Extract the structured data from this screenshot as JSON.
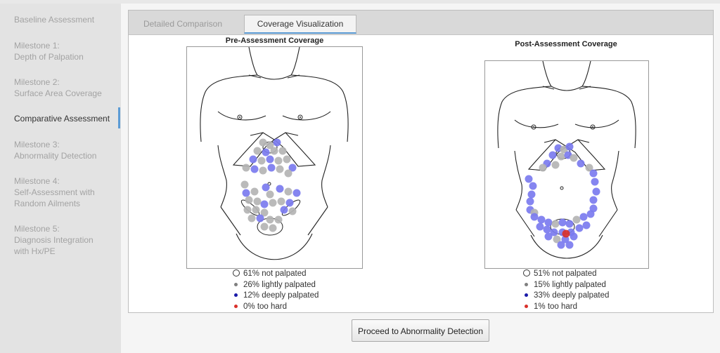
{
  "sidebar": {
    "items": [
      {
        "lines": [
          "Baseline Assessment"
        ],
        "active": false
      },
      {
        "lines": [
          "Milestone 1:",
          "Depth of Palpation"
        ],
        "active": false
      },
      {
        "lines": [
          "Milestone 2:",
          "Surface Area Coverage"
        ],
        "active": false
      },
      {
        "lines": [
          "Comparative Assessment"
        ],
        "active": true
      },
      {
        "lines": [
          "Milestone 3:",
          "Abnormality Detection"
        ],
        "active": false
      },
      {
        "lines": [
          "Milestone 4:",
          "Self-Assessment with",
          "Random Ailments"
        ],
        "active": false
      },
      {
        "lines": [
          "Milestone 5:",
          "Diagnosis Integration",
          "with Hx/PE"
        ],
        "active": false
      }
    ]
  },
  "tabs": [
    {
      "label": "Detailed Comparison",
      "selected": false
    },
    {
      "label": "Coverage Visualization",
      "selected": true
    }
  ],
  "pre": {
    "title": "Pre-Assessment Coverage",
    "legend": [
      "61% not palpated",
      "26% lightly palpated",
      "12% deeply palpated",
      "0% too hard"
    ]
  },
  "post": {
    "title": "Post-Assessment Coverage",
    "legend": [
      "51% not palpated",
      "15% lightly palpated",
      "33% deeply palpated",
      "1% too hard"
    ]
  },
  "colors": {
    "not_palpated": "#ffffff",
    "lightly_palpated": "#b4b4b4",
    "deeply_palpated": "#7b7bef",
    "too_hard": "#d9302a",
    "accent": "#5b9bd5"
  },
  "proceed_button": "Proceed to Abnormality Detection"
}
